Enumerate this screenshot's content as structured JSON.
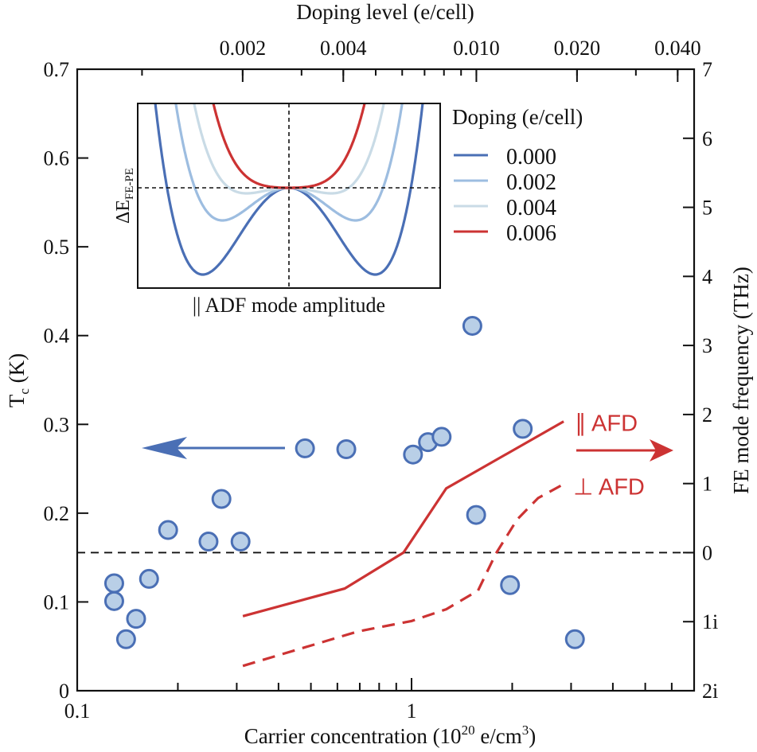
{
  "chart_data": {
    "type": "scatter",
    "title": "",
    "xlabel": "Carrier concentration (10",
    "xlabel_sup": "20",
    "xlabel_tail": " e/cm",
    "xlabel_sup2": "3",
    "xlabel_end": ")",
    "xscale": "log",
    "xlim": [
      0.1,
      7
    ],
    "xticks": [
      {
        "v": 0.1,
        "label": "0.1"
      },
      {
        "v": 1,
        "label": "1"
      }
    ],
    "top_axis": {
      "label": "Doping level (e/cell)",
      "scale": "log",
      "ticks": [
        {
          "v": 0.002,
          "label": "0.002"
        },
        {
          "v": 0.004,
          "label": "0.004"
        },
        {
          "v": 0.01,
          "label": "0.010"
        },
        {
          "v": 0.02,
          "label": "0.020"
        },
        {
          "v": 0.04,
          "label": "0.040"
        }
      ]
    },
    "ylabel_left": "T",
    "ylabel_left_sub": "c",
    "ylabel_left_tail": " (K)",
    "ylim_left": [
      0,
      0.7
    ],
    "yticks_left": [
      "0",
      "0.1",
      "0.2",
      "0.3",
      "0.4",
      "0.5",
      "0.6",
      "0.7"
    ],
    "ylabel_right": "FE mode frequency (THz)",
    "ylim_right": [
      -2,
      7
    ],
    "yticks_right": [
      {
        "v": 7,
        "label": "7"
      },
      {
        "v": 6,
        "label": "6"
      },
      {
        "v": 5,
        "label": "5"
      },
      {
        "v": 4,
        "label": "4"
      },
      {
        "v": 3,
        "label": "3"
      },
      {
        "v": 2,
        "label": "2"
      },
      {
        "v": 1,
        "label": "1"
      },
      {
        "v": 0,
        "label": "0"
      },
      {
        "v": -1,
        "label": "1i"
      },
      {
        "v": -2,
        "label": "2i"
      }
    ],
    "grid": false,
    "zero_line_right": 0,
    "scatter_Tc": {
      "axis": "left",
      "color": "#4a6fb5",
      "fill": "#b9cfe7",
      "points": [
        [
          0.129,
          0.121
        ],
        [
          0.129,
          0.101
        ],
        [
          0.15,
          0.081
        ],
        [
          0.14,
          0.058
        ],
        [
          0.164,
          0.126
        ],
        [
          0.187,
          0.181
        ],
        [
          0.27,
          0.216
        ],
        [
          0.247,
          0.168
        ],
        [
          0.308,
          0.168
        ],
        [
          0.48,
          0.273
        ],
        [
          0.638,
          0.272
        ],
        [
          1.01,
          0.266
        ],
        [
          1.12,
          0.28
        ],
        [
          1.23,
          0.286
        ],
        [
          1.52,
          0.411
        ],
        [
          1.56,
          0.198
        ],
        [
          1.97,
          0.119
        ],
        [
          2.15,
          0.295
        ],
        [
          3.08,
          0.058
        ]
      ]
    },
    "series": [
      {
        "name": "∥ AFD",
        "axis": "right",
        "style": "solid",
        "color": "#cc3333",
        "points": [
          [
            0.313,
            -0.92
          ],
          [
            0.631,
            -0.52
          ],
          [
            0.946,
            0.0
          ],
          [
            1.27,
            0.93
          ],
          [
            2.85,
            1.9
          ]
        ]
      },
      {
        "name": "⊥ AFD",
        "axis": "right",
        "style": "dashed",
        "color": "#cc3333",
        "points": [
          [
            0.313,
            -1.64
          ],
          [
            0.693,
            -1.14
          ],
          [
            1.0,
            -0.99
          ],
          [
            1.27,
            -0.82
          ],
          [
            1.58,
            -0.55
          ],
          [
            1.79,
            -0.01
          ],
          [
            2.07,
            0.48
          ],
          [
            2.39,
            0.79
          ],
          [
            2.82,
            0.98
          ]
        ]
      }
    ],
    "arrows": {
      "left_color": "#4a6fb5",
      "right_color": "#cc3333"
    },
    "inset": {
      "xlabel": "|| ADF mode amplitude",
      "ylabel": "ΔE",
      "ylabel_sub": "FE-PE",
      "legend_title": "Doping (e/cell)",
      "legend": [
        {
          "label": "0.000",
          "color": "#4a6fb5"
        },
        {
          "label": "0.002",
          "color": "#9dbde0"
        },
        {
          "label": "0.004",
          "color": "#c9dbe6"
        },
        {
          "label": "0.006",
          "color": "#cc3333"
        }
      ]
    }
  }
}
